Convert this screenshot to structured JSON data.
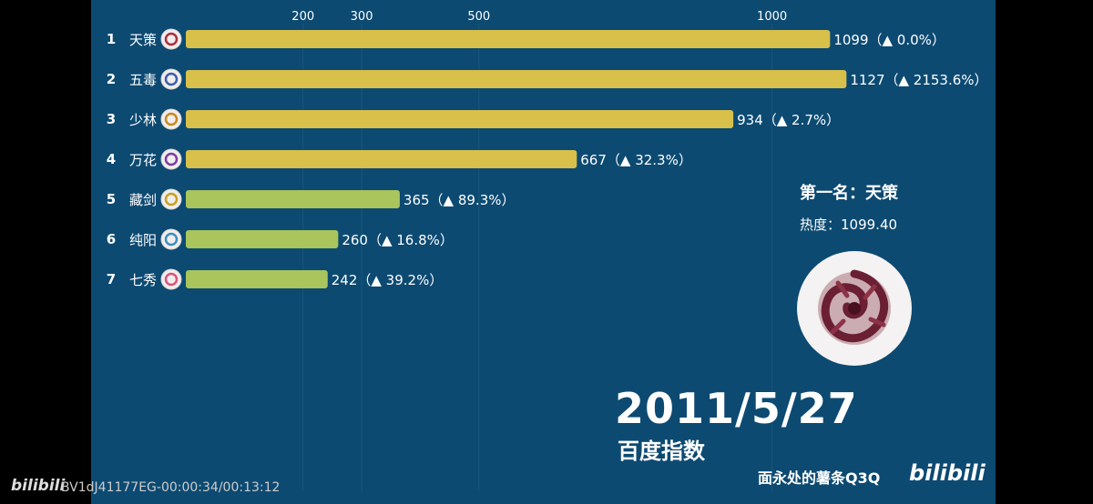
{
  "chart_data": {
    "type": "bar",
    "orientation": "horizontal",
    "x_ticks": [
      200,
      300,
      500,
      1000
    ],
    "bars": [
      {
        "rank": "1",
        "name": "天策",
        "value": 1099,
        "label": "1099（▲ 0.0%）",
        "color": "#d8c04a",
        "icon": "tiance-emblem-icon"
      },
      {
        "rank": "2",
        "name": "五毒",
        "value": 1127,
        "label": "1127（▲ 2153.6%）",
        "color": "#d8c04a",
        "icon": "wudu-emblem-icon"
      },
      {
        "rank": "3",
        "name": "少林",
        "value": 934,
        "label": "934（▲ 2.7%）",
        "color": "#d8c04a",
        "icon": "shaolin-emblem-icon"
      },
      {
        "rank": "4",
        "name": "万花",
        "value": 667,
        "label": "667（▲ 32.3%）",
        "color": "#d8c04a",
        "icon": "wanhua-emblem-icon"
      },
      {
        "rank": "5",
        "name": "藏剑",
        "value": 365,
        "label": "365（▲ 89.3%）",
        "color": "#a9c55c",
        "icon": "cangjian-emblem-icon"
      },
      {
        "rank": "6",
        "name": "纯阳",
        "value": 260,
        "label": "260（▲ 16.8%）",
        "color": "#a9c55c",
        "icon": "chunyang-emblem-icon"
      },
      {
        "rank": "7",
        "name": "七秀",
        "value": 242,
        "label": "242（▲ 39.2%）",
        "color": "#a9c55c",
        "icon": "qixiu-emblem-icon"
      }
    ]
  },
  "leader": {
    "title": "第一名：天策",
    "heat": "热度：1099.40",
    "icon": "tiance-emblem-icon"
  },
  "date": "2011/5/27",
  "index_name": "百度指数",
  "uploader": "面永处的薯条Q3Q",
  "brand": "bilibili",
  "video_id": "BV1dJ41177EG-00:00:34/00:13:12",
  "colors": {
    "background": "#0c4a72",
    "bar_top": "#d8c04a",
    "bar_other": "#a9c55c"
  }
}
